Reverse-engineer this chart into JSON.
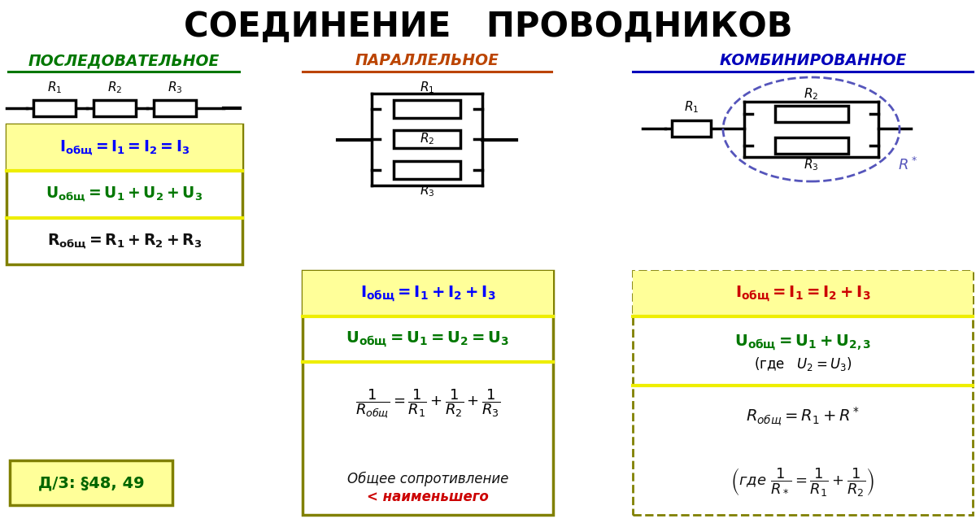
{
  "title": "СОЕДИНЕНИЕ   ПРОВОДНИКОВ",
  "title_fontsize": 30,
  "title_color": "#000000",
  "bg_color": "#ffffff",
  "col1_header": "ПОСЛЕДОВАТЕЛЬНОЕ",
  "col2_header": "ПАРАЛЛЕЛЬНОЕ",
  "col3_header": "КОМБИНИРОВАННОЕ",
  "col1_header_color": "#007700",
  "col2_header_color": "#BB4400",
  "col3_header_color": "#0000BB",
  "box_border_color": "#808000",
  "yellow_bg": "#FFFF99",
  "yellow_line": "#EEEE00",
  "col1_f1_color": "#0000FF",
  "col1_f2_color": "#007700",
  "col1_f3_color": "#111111",
  "col2_f1_color": "#0000FF",
  "col2_f2_color": "#007700",
  "col2_f3_color": "#111111",
  "col3_f1_color": "#CC0000",
  "col3_f2_color": "#007700",
  "col3_f3_color": "#111111",
  "hw_border": "#808000",
  "hw_bg": "#FFFF99",
  "hw_text": "Д/3: §48, 49",
  "ellipse_color": "#5555BB",
  "Rstar_color": "#5555BB"
}
